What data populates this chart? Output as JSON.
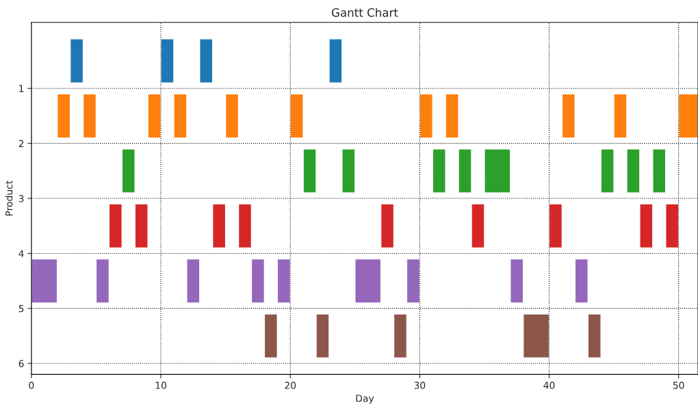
{
  "chart_data": {
    "type": "bar",
    "orientation": "horizontal",
    "title": "Gantt Chart",
    "xlabel": "Day",
    "ylabel": "Product",
    "xlim": [
      0,
      51.5
    ],
    "xticks": [
      0,
      10,
      20,
      30,
      40,
      50
    ],
    "ylim": [
      6.2,
      -0.2
    ],
    "yticks": [
      1,
      2,
      3,
      4,
      5,
      6
    ],
    "grid": true,
    "series": [
      {
        "x": [
          0.5,
          1.5,
          2.5,
          3.5,
          4.5,
          5.5
        ],
        "base": [
          3,
          2,
          7,
          6,
          0,
          18
        ],
        "values": [
          1,
          1,
          1,
          1,
          2,
          1
        ],
        "colors": [
          "#1f77b4",
          "#ff7f0e",
          "#2ca02c",
          "#d62728",
          "#9467bd",
          "#8c564b"
        ]
      },
      {
        "x": [
          0.5,
          1.5,
          2.5,
          3.5,
          4.5,
          5.5
        ],
        "base": [
          10,
          4,
          21,
          8,
          5,
          22
        ],
        "values": [
          1,
          1,
          1,
          1,
          1,
          1
        ],
        "colors": [
          "#1f77b4",
          "#ff7f0e",
          "#2ca02c",
          "#d62728",
          "#9467bd",
          "#8c564b"
        ]
      },
      {
        "x": [
          0.5,
          1.5,
          2.5,
          3.5,
          4.5,
          5.5
        ],
        "base": [
          13,
          9,
          24,
          14,
          12,
          28
        ],
        "values": [
          1,
          1,
          1,
          1,
          1,
          1
        ],
        "colors": [
          "#1f77b4",
          "#ff7f0e",
          "#2ca02c",
          "#d62728",
          "#9467bd",
          "#8c564b"
        ]
      },
      {
        "x": [
          0.5,
          1.5,
          2.5,
          3.5,
          4.5,
          5.5
        ],
        "base": [
          23,
          11,
          31,
          16,
          17,
          38
        ],
        "values": [
          1,
          1,
          1,
          1,
          1,
          2
        ],
        "colors": [
          "#1f77b4",
          "#ff7f0e",
          "#2ca02c",
          "#d62728",
          "#9467bd",
          "#8c564b"
        ]
      },
      {
        "x": [
          1.5,
          2.5,
          3.5,
          4.5,
          5.5
        ],
        "base": [
          15,
          33,
          27,
          19,
          43
        ],
        "values": [
          1,
          1,
          1,
          1,
          1
        ],
        "colors": [
          "#ff7f0e",
          "#2ca02c",
          "#d62728",
          "#9467bd",
          "#8c564b"
        ]
      },
      {
        "x": [
          1.5,
          2.5,
          3.5,
          4.5
        ],
        "base": [
          20,
          35,
          34,
          25
        ],
        "values": [
          1,
          2,
          1,
          2
        ],
        "colors": [
          "#ff7f0e",
          "#2ca02c",
          "#d62728",
          "#9467bd"
        ]
      },
      {
        "x": [
          1.5,
          2.5,
          3.5,
          4.5
        ],
        "base": [
          30,
          44,
          40,
          29
        ],
        "values": [
          1,
          1,
          1,
          1
        ],
        "colors": [
          "#ff7f0e",
          "#2ca02c",
          "#d62728",
          "#9467bd"
        ]
      },
      {
        "x": [
          1.5,
          2.5,
          3.5,
          4.5
        ],
        "base": [
          32,
          46,
          47,
          37
        ],
        "values": [
          1,
          1,
          1,
          1
        ],
        "colors": [
          "#ff7f0e",
          "#2ca02c",
          "#d62728",
          "#9467bd"
        ]
      },
      {
        "x": [
          1.5,
          2.5,
          3.5,
          4.5
        ],
        "base": [
          41,
          48,
          49,
          42
        ],
        "values": [
          1,
          1,
          1,
          1
        ],
        "colors": [
          "#ff7f0e",
          "#2ca02c",
          "#d62728",
          "#9467bd"
        ]
      },
      {
        "x": [
          1.5
        ],
        "base": [
          45
        ],
        "values": [
          1
        ],
        "colors": [
          "#ff7f0e"
        ]
      },
      {
        "x": [
          1.5
        ],
        "base": [
          50
        ],
        "values": [
          1.5
        ],
        "colors": [
          "#ff7f0e"
        ]
      }
    ]
  }
}
